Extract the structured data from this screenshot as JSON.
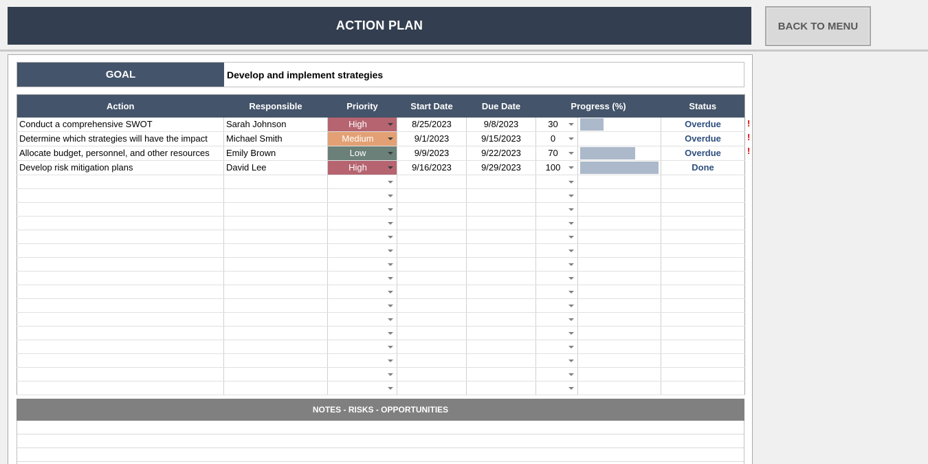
{
  "header": {
    "title": "ACTION PLAN",
    "back_button": "BACK TO MENU"
  },
  "goal": {
    "label": "GOAL",
    "value": "Develop and implement strategies"
  },
  "columns": [
    "Action",
    "Responsible",
    "Priority",
    "Start Date",
    "Due Date",
    "Progress (%)",
    "Status"
  ],
  "rows": [
    {
      "action": "Conduct a comprehensive SWOT",
      "responsible": "Sarah Johnson",
      "priority": "High",
      "start": "8/25/2023",
      "due": "9/8/2023",
      "progress": "30",
      "progress_value": 30,
      "status": "Overdue",
      "flag": "!"
    },
    {
      "action": "Determine which strategies will have the impact",
      "responsible": "Michael Smith",
      "priority": "Medium",
      "start": "9/1/2023",
      "due": "9/15/2023",
      "progress": "0",
      "progress_value": 0,
      "status": "Overdue",
      "flag": "!"
    },
    {
      "action": "Allocate budget, personnel, and other resources",
      "responsible": "Emily Brown",
      "priority": "Low",
      "start": "9/9/2023",
      "due": "9/22/2023",
      "progress": "70",
      "progress_value": 70,
      "status": "Overdue",
      "flag": "!"
    },
    {
      "action": "Develop risk mitigation plans",
      "responsible": "David Lee",
      "priority": "High",
      "start": "9/16/2023",
      "due": "9/29/2023",
      "progress": "100",
      "progress_value": 100,
      "status": "Done",
      "flag": ""
    }
  ],
  "empty_row_count": 16,
  "notes": {
    "title": "NOTES - RISKS - OPPORTUNITIES"
  },
  "colors": {
    "header_bg": "#333f50",
    "table_header_bg": "#44546a",
    "priority_high": "#b56470",
    "priority_medium": "#e3a074",
    "priority_low": "#6b8079",
    "progress_bar": "#acb9ca",
    "status_text": "#2f4f7f",
    "flag": "#e00000"
  }
}
